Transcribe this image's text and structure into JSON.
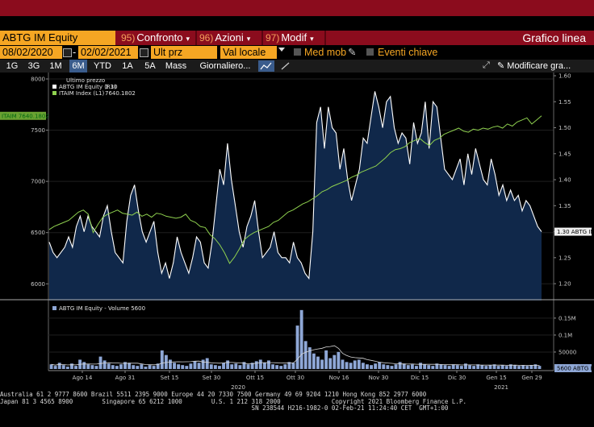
{
  "toolbar": {
    "security": "ABTG IM Equity",
    "buttons": [
      {
        "num": "95)",
        "label": "Confronto",
        "caret": "▾"
      },
      {
        "num": "96)",
        "label": "Azioni",
        "caret": "▾"
      },
      {
        "num": "97)",
        "label": "Modif",
        "caret": "▾"
      }
    ],
    "title": "Grafico linea"
  },
  "settings": {
    "start_date": "08/02/2020",
    "dash": "-",
    "end_date": "02/02/2021",
    "field": "Ult prz",
    "currency": "Val locale",
    "moving_avg": "Med mob",
    "key_events": "Eventi chiave"
  },
  "ranges": [
    "1G",
    "3G",
    "1M",
    "6M",
    "YTD",
    "1A",
    "5A",
    "Mass",
    "Giornaliero..."
  ],
  "selected_range": "6M",
  "row3_right": {
    "edit": "Modificare gra..."
  },
  "chart_data": {
    "type": "line",
    "legend": {
      "header": "Ultimo prezzo",
      "entries": [
        {
          "name": "ABTG IM Equity  (R1)",
          "value": "1.30",
          "color": "#ffffff"
        },
        {
          "name": "ITAIM Index  (L1)",
          "value": "7640.1802",
          "color": "#8fd14f"
        }
      ]
    },
    "left_axis": {
      "ticks": [
        "8000",
        "7500",
        "7000",
        "6500",
        "6000"
      ],
      "ylim": [
        5900,
        8000
      ]
    },
    "right_axis": {
      "ticks": [
        "1.60",
        "1.55",
        "1.50",
        "1.45",
        "1.40",
        "1.35",
        "1.30",
        "1.25",
        "1.20"
      ],
      "ylim": [
        1.18,
        1.6
      ]
    },
    "left_badge": "ITAIM 7640.1802",
    "right_badge": "1.30 ABTG IM",
    "x_labels": [
      "Ago 14",
      "Ago 31",
      "Set 15",
      "Set 30",
      "Ott 15",
      "Ott 30",
      "Nov 16",
      "Nov 30",
      "Dic 15",
      "Dic 30",
      "Gen 15",
      "Gen 29"
    ],
    "year_labels": [
      "2020",
      "2021"
    ],
    "series": [
      {
        "name": "ABTG IM Equity",
        "axis": "right",
        "color": "#ffffff",
        "values": [
          1.28,
          1.26,
          1.25,
          1.26,
          1.27,
          1.29,
          1.27,
          1.31,
          1.33,
          1.3,
          1.33,
          1.31,
          1.3,
          1.29,
          1.33,
          1.35,
          1.3,
          1.26,
          1.25,
          1.24,
          1.32,
          1.37,
          1.39,
          1.34,
          1.3,
          1.28,
          1.3,
          1.32,
          1.26,
          1.22,
          1.24,
          1.21,
          1.24,
          1.29,
          1.26,
          1.24,
          1.22,
          1.25,
          1.29,
          1.28,
          1.24,
          1.23,
          1.28,
          1.35,
          1.42,
          1.39,
          1.47,
          1.4,
          1.35,
          1.3,
          1.27,
          1.31,
          1.33,
          1.36,
          1.3,
          1.25,
          1.26,
          1.27,
          1.3,
          1.26,
          1.25,
          1.25,
          1.24,
          1.28,
          1.25,
          1.24,
          1.22,
          1.21,
          1.3,
          1.51,
          1.54,
          1.46,
          1.54,
          1.5,
          1.49,
          1.42,
          1.46,
          1.4,
          1.36,
          1.39,
          1.42,
          1.48,
          1.47,
          1.52,
          1.57,
          1.54,
          1.5,
          1.55,
          1.56,
          1.5,
          1.47,
          1.49,
          1.48,
          1.43,
          1.51,
          1.47,
          1.49,
          1.55,
          1.46,
          1.55,
          1.54,
          1.48,
          1.42,
          1.41,
          1.4,
          1.42,
          1.44,
          1.39,
          1.45,
          1.41,
          1.46,
          1.43,
          1.4,
          1.39,
          1.44,
          1.41,
          1.37,
          1.39,
          1.36,
          1.38,
          1.36,
          1.37,
          1.34,
          1.36,
          1.35,
          1.33,
          1.31,
          1.3
        ]
      },
      {
        "name": "ITAIM Index",
        "axis": "left",
        "color": "#8fd14f",
        "values": [
          6530,
          6560,
          6580,
          6600,
          6620,
          6660,
          6700,
          6720,
          6680,
          6500,
          6580,
          6650,
          6680,
          6700,
          6720,
          6690,
          6680,
          6670,
          6700,
          6660,
          6680,
          6650,
          6690,
          6680,
          6660,
          6650,
          6640,
          6650,
          6680,
          6620,
          6600,
          6560,
          6550,
          6480,
          6440,
          6380,
          6300,
          6200,
          6260,
          6340,
          6430,
          6470,
          6500,
          6520,
          6540,
          6560,
          6600,
          6620,
          6660,
          6700,
          6720,
          6750,
          6780,
          6800,
          6830,
          6860,
          6900,
          6920,
          6950,
          6970,
          6990,
          7010,
          7040,
          7060,
          7090,
          7110,
          7130,
          7150,
          7190,
          7230,
          7280,
          7310,
          7320,
          7340,
          7380,
          7400,
          7420,
          7380,
          7350,
          7400,
          7420,
          7460,
          7480,
          7500,
          7520,
          7490,
          7480,
          7510,
          7500,
          7520,
          7510,
          7530,
          7540,
          7520,
          7560,
          7540,
          7580,
          7600,
          7620,
          7560,
          7600,
          7640
        ]
      },
      {
        "name": "ABTG IM Equity - Volume",
        "axis": "volume",
        "color": "#8ea7d6",
        "values": [
          30,
          20,
          40,
          25,
          15,
          35,
          20,
          60,
          45,
          30,
          25,
          20,
          80,
          55,
          35,
          25,
          20,
          30,
          45,
          40,
          25,
          20,
          30,
          15,
          25,
          20,
          35,
          120,
          90,
          60,
          40,
          30,
          25,
          20,
          35,
          50,
          40,
          60,
          70,
          30,
          25,
          20,
          40,
          55,
          30,
          35,
          25,
          45,
          30,
          40,
          50,
          60,
          40,
          55,
          30,
          25,
          20,
          30,
          45,
          40,
          280,
          380,
          180,
          140,
          100,
          80,
          60,
          120,
          70,
          90,
          110,
          60,
          45,
          40,
          55,
          60,
          40,
          30,
          25,
          35,
          45,
          30,
          25,
          20,
          30,
          45,
          35,
          25,
          30,
          20,
          40,
          30,
          25,
          20,
          35,
          30,
          25,
          20,
          30,
          25,
          20,
          35,
          25,
          20,
          30,
          25,
          20,
          25,
          30,
          20,
          25,
          20,
          30,
          25,
          20,
          25,
          20,
          25,
          30,
          20
        ]
      }
    ],
    "volume_legend": "ABTG IM Equity - Volume  5600",
    "volume_axis": {
      "ticks": [
        "0.15M",
        "0.1M",
        "50000"
      ],
      "ylim": [
        0,
        190000
      ]
    },
    "volume_badge": "5600 ABTG IM"
  },
  "footer": {
    "line1": "Australia 61 2 9777 8600 Brazil 5511 2395 9000 Europe 44 20 7330 7500 Germany 49 69 9204 1210 Hong Kong 852 2977 6000",
    "line2": "Japan 81 3 4565 8900        Singapore 65 6212 1000        U.S. 1 212 318 2000              Copyright 2021 Bloomberg Finance L.P.",
    "line3": "                                                                     SN 238544 H216-1982-0 02-Feb-21 11:24:40 CET  GMT+1:00"
  }
}
